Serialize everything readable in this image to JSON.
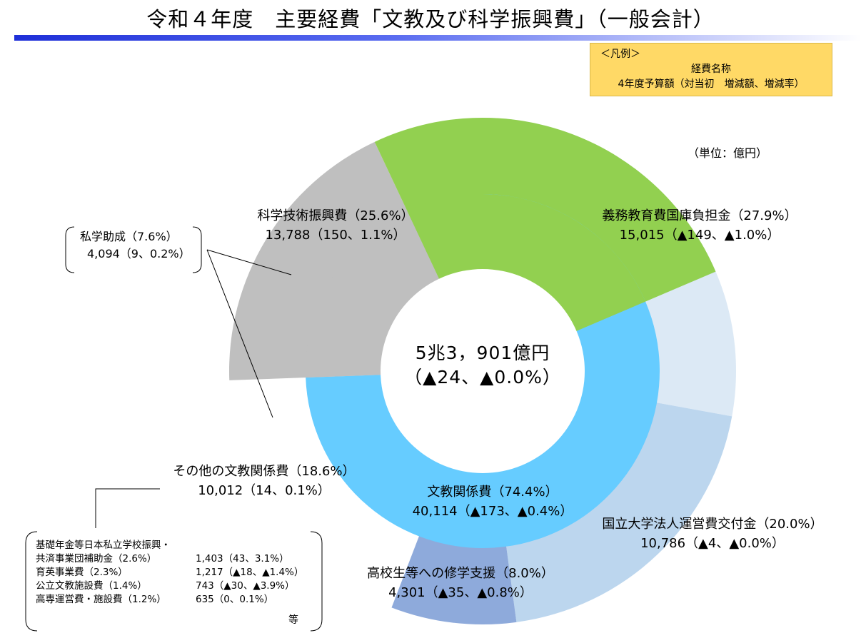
{
  "title": "令和４年度　主要経費「文教及び科学振興費」（一般会計）",
  "legend_box": {
    "heading": "＜凡例＞",
    "line1": "経費名称",
    "line2": "4年度予算額（対当初　増減額、増減率）"
  },
  "unit": "（単位：億円）",
  "center": {
    "total": "5兆3，901億円",
    "change": "（▲24、▲0.0%）"
  },
  "private_school": {
    "name": "私学助成（7.6%）",
    "value": "4,094（9、0.2%）"
  },
  "other_items": [
    {
      "name": "基礎年金等日本私立学校振興・",
      "value": ""
    },
    {
      "name": "共済事業団補助金（2.6%）",
      "value": "1,403（43、3.1%）"
    },
    {
      "name": "育英事業費（2.3%）",
      "value": "1,217（▲18、▲1.4%）"
    },
    {
      "name": "公立文教施設費（1.4%）",
      "value": "743（▲30、▲3.9%）"
    },
    {
      "name": "高専運営費・施設費（1.2%）",
      "value": "635（0、0.1%）"
    }
  ],
  "other_etc": "等",
  "colors": {
    "inner_bunkyo": "#66ccff",
    "inner_kagaku": "#92d050",
    "inner_sonota": "#bfbfbf",
    "outer_gimu": "#dce9f5",
    "outer_kokuritsu": "#bcd6ee",
    "outer_koko": "#8eaadb",
    "legend_fill": "#ffd966"
  },
  "chart_data": {
    "type": "pie",
    "title": "令和４年度　主要経費「文教及び科学振興費」（一般会計）",
    "unit": "億円",
    "total": 53901,
    "inner_ring": [
      {
        "name": "文教関係費",
        "value": 40114,
        "share_pct": 74.4,
        "change": "▲173",
        "change_pct": "▲0.4%",
        "label1": "文教関係費（74.4%）",
        "label2": "40,114（▲173、▲0.4%）"
      },
      {
        "name": "その他の文教関係費",
        "value": 10012,
        "share_pct": 18.6,
        "change": "14",
        "change_pct": "0.1%",
        "label1": "その他の文教関係費（18.6%）",
        "label2": "10,012（14、0.1%）"
      },
      {
        "name": "科学技術振興費",
        "value": 13788,
        "share_pct": 25.6,
        "change": "150",
        "change_pct": "1.1%",
        "label1": "科学技術振興費（25.6%）",
        "label2": "13,788（150、1.1%）"
      }
    ],
    "outer_ring": [
      {
        "name": "義務教育費国庫負担金",
        "value": 15015,
        "share_pct": 27.9,
        "change": "▲149",
        "change_pct": "▲1.0%",
        "label1": "義務教育費国庫負担金（27.9%）",
        "label2": "15,015（▲149、▲1.0%）"
      },
      {
        "name": "国立大学法人運営費交付金",
        "value": 10786,
        "share_pct": 20.0,
        "change": "▲4",
        "change_pct": "▲0.0%",
        "label1": "国立大学法人運営費交付金（20.0%）",
        "label2": "10,786（▲4、▲0.0%）"
      },
      {
        "name": "高校生等への修学支援",
        "value": 4301,
        "share_pct": 8.0,
        "change": "▲35",
        "change_pct": "▲0.8%",
        "label1": "高校生等への修学支援（8.0%）",
        "label2": "4,301（▲35、▲0.8%）"
      }
    ]
  }
}
